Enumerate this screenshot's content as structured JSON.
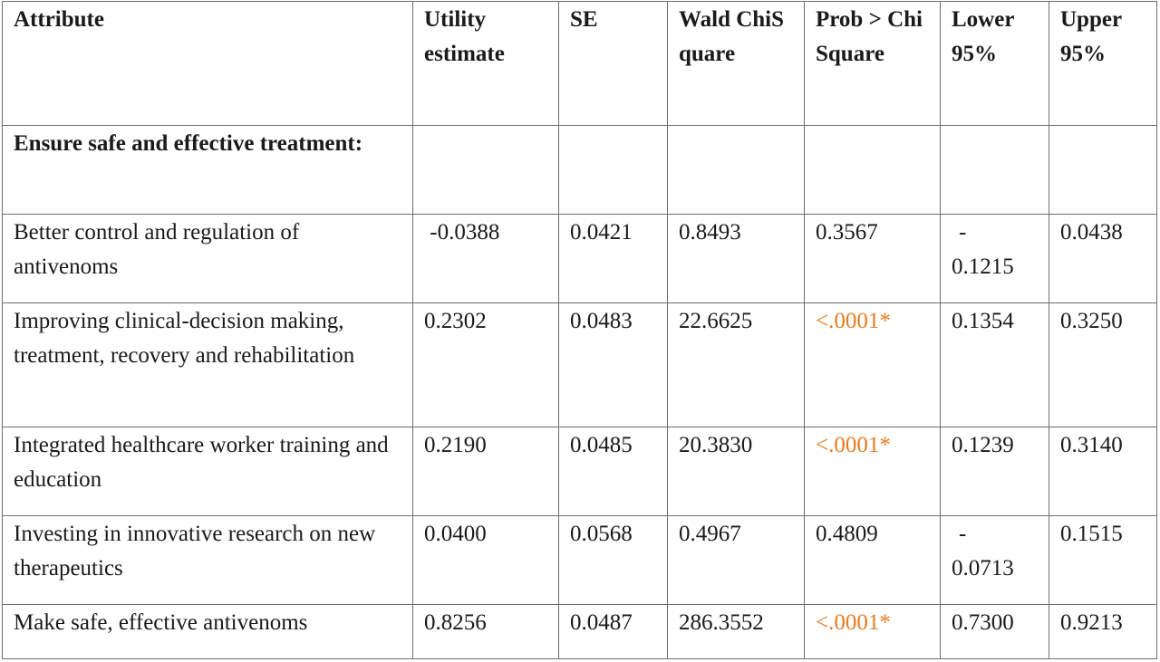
{
  "table": {
    "headers": [
      "Attribute",
      "Utility estimate",
      "SE",
      "Wald ChiSquare",
      "Prob > ChiSquare",
      "Lower 95%",
      "Upper 95%"
    ],
    "section_title": "Ensure safe and effective treatment:",
    "rows": [
      {
        "attribute": "Better control and regulation of antivenoms",
        "utility": " -0.0388",
        "se": "0.0421",
        "wald": "0.8493",
        "prob": "0.3567",
        "prob_significant": false,
        "lower_sign": "-",
        "lower_value": "0.1215",
        "upper": "0.0438"
      },
      {
        "attribute": "Improving clinical-decision making, treatment, recovery and rehabilitation",
        "utility": "0.2302",
        "se": "0.0483",
        "wald": "22.6625",
        "prob": "<.0001*",
        "prob_significant": true,
        "lower_value": "0.1354",
        "upper": "0.3250"
      },
      {
        "attribute": "Integrated healthcare worker training and education",
        "utility": "0.2190",
        "se": "0.0485",
        "wald": "20.3830",
        "prob": "<.0001*",
        "prob_significant": true,
        "lower_value": "0.1239",
        "upper": "0.3140"
      },
      {
        "attribute": "Investing in innovative research on new therapeutics",
        "utility": "0.0400",
        "se": "0.0568",
        "wald": "0.4967",
        "prob": "0.4809",
        "prob_significant": false,
        "lower_sign": "-",
        "lower_value": "0.0713",
        "upper": "0.1515"
      },
      {
        "attribute": "Make safe, effective antivenoms",
        "utility": "0.8256",
        "se": "0.0487",
        "wald": "286.3552",
        "prob": "<.0001*",
        "prob_significant": true,
        "lower_value": "0.7300",
        "upper": "0.9213"
      }
    ],
    "colors": {
      "significant": "#e87a1e",
      "border": "#6e6e6e",
      "text": "#1a1a1a"
    }
  }
}
